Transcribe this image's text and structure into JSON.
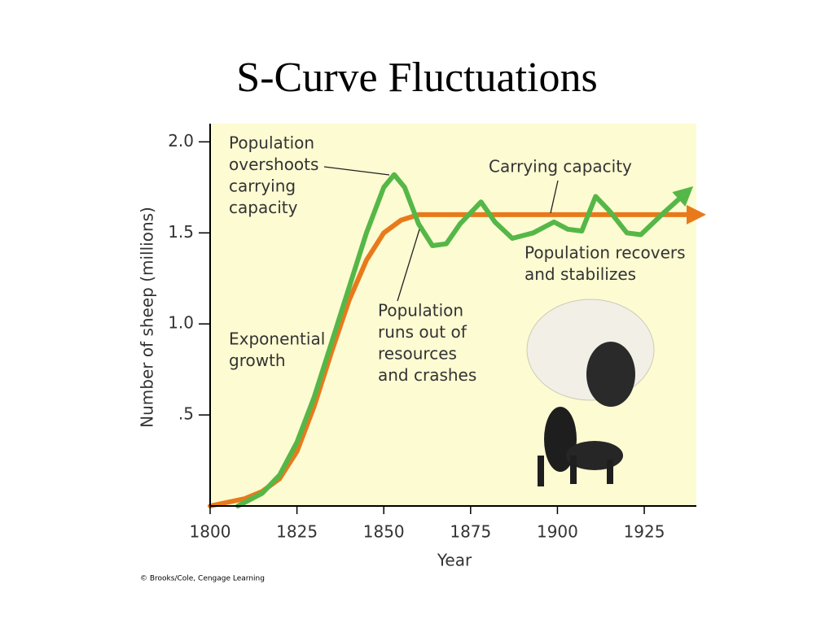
{
  "chart_data": {
    "type": "line",
    "title": "S-Curve Fluctuations",
    "xlabel": "Year",
    "ylabel": "Number of sheep (millions)",
    "credit": "© Brooks/Cole, Cengage Learning",
    "xlim": [
      1800,
      1940
    ],
    "ylim": [
      0,
      2.1
    ],
    "xticks": [
      1800,
      1825,
      1850,
      1875,
      1900,
      1925
    ],
    "yticks": [
      {
        "value": 0.5,
        "label": ".5"
      },
      {
        "value": 1,
        "label": "1.0"
      },
      1.5,
      {
        "value": 2,
        "label": "2.0"
      }
    ],
    "series": [
      {
        "color": "#e87a1c",
        "x": [
          1800,
          1810,
          1815,
          1820,
          1825,
          1830,
          1835,
          1840,
          1845,
          1850,
          1855,
          1860,
          1865,
          1900,
          1940
        ],
        "values": [
          0,
          0.04,
          0.08,
          0.15,
          0.3,
          0.55,
          0.85,
          1.13,
          1.35,
          1.5,
          1.57,
          1.6,
          1.6,
          1.6,
          1.6
        ]
      },
      {
        "color": "#55b747",
        "x": [
          1808,
          1815,
          1820,
          1825,
          1830,
          1835,
          1840,
          1845,
          1850,
          1853,
          1856,
          1860,
          1864,
          1868,
          1872,
          1878,
          1882,
          1887,
          1893,
          1899,
          1903,
          1907,
          1911,
          1915,
          1920,
          1924,
          1930,
          1937
        ],
        "values": [
          0,
          0.07,
          0.17,
          0.35,
          0.6,
          0.9,
          1.2,
          1.5,
          1.75,
          1.82,
          1.75,
          1.55,
          1.43,
          1.44,
          1.55,
          1.67,
          1.56,
          1.47,
          1.5,
          1.56,
          1.52,
          1.51,
          1.7,
          1.62,
          1.5,
          1.49,
          1.6,
          1.72
        ]
      }
    ],
    "annotations": [
      {
        "text": [
          "Population",
          "overshoots",
          "carrying",
          "capacity"
        ]
      },
      {
        "text": [
          "Carrying capacity"
        ]
      },
      {
        "text": [
          "Population recovers",
          "and stabilizes"
        ]
      },
      {
        "text": [
          "Population",
          "runs out of",
          "resources",
          "and crashes"
        ]
      },
      {
        "text": [
          "Exponential",
          "growth"
        ]
      }
    ]
  }
}
